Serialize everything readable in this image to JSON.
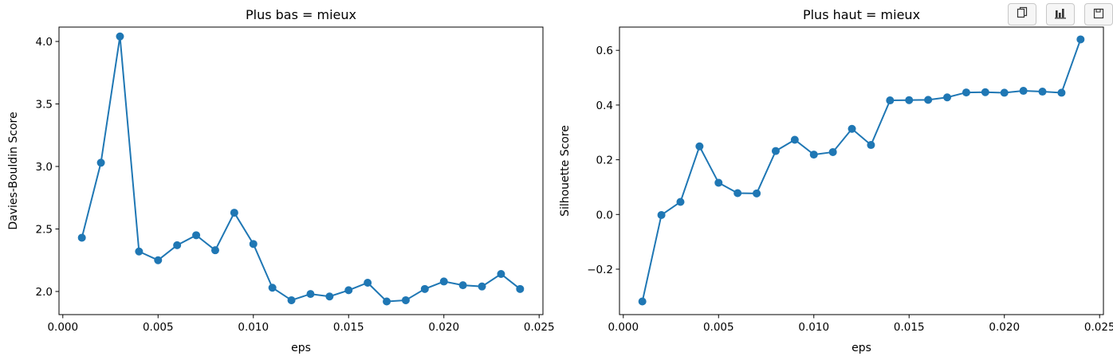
{
  "toolbar": {
    "buttons": [
      {
        "icon": "copy-icon"
      },
      {
        "icon": "bar-chart-icon"
      },
      {
        "icon": "save-icon"
      }
    ]
  },
  "chart_data": [
    {
      "type": "line",
      "title": "Plus bas = mieux",
      "xlabel": "eps",
      "ylabel": "Davies-Bouldin Score",
      "xlim": [
        -0.0002,
        0.0252
      ],
      "ylim": [
        1.815,
        4.115
      ],
      "xticks": [
        0.0,
        0.005,
        0.01,
        0.015,
        0.02,
        0.025
      ],
      "xtick_labels": [
        "0.000",
        "0.005",
        "0.010",
        "0.015",
        "0.020",
        "0.025"
      ],
      "yticks": [
        2.0,
        2.5,
        3.0,
        3.5,
        4.0
      ],
      "ytick_labels": [
        "2.0",
        "2.5",
        "3.0",
        "3.5",
        "4.0"
      ],
      "color": "#1f77b4",
      "marker": "circle",
      "x": [
        0.001,
        0.002,
        0.003,
        0.004,
        0.005,
        0.006,
        0.007,
        0.008,
        0.009,
        0.01,
        0.011,
        0.012,
        0.013,
        0.014,
        0.015,
        0.016,
        0.017,
        0.018,
        0.019,
        0.02,
        0.021,
        0.022,
        0.023,
        0.024
      ],
      "y": [
        2.43,
        3.03,
        4.04,
        2.32,
        2.25,
        2.37,
        2.45,
        2.33,
        2.63,
        2.38,
        2.03,
        1.93,
        1.98,
        1.96,
        2.01,
        2.07,
        1.92,
        1.93,
        2.02,
        2.08,
        2.05,
        2.04,
        2.14,
        2.02
      ],
      "grid": false
    },
    {
      "type": "line",
      "title": "Plus haut = mieux",
      "xlabel": "eps",
      "ylabel": "Silhouette Score",
      "xlim": [
        -0.0002,
        0.0252
      ],
      "ylim": [
        -0.366,
        0.685
      ],
      "xticks": [
        0.0,
        0.005,
        0.01,
        0.015,
        0.02,
        0.025
      ],
      "xtick_labels": [
        "0.000",
        "0.005",
        "0.010",
        "0.015",
        "0.020",
        "0.025"
      ],
      "yticks": [
        -0.2,
        0.0,
        0.2,
        0.4,
        0.6
      ],
      "ytick_labels": [
        "−0.2",
        "0.0",
        "0.2",
        "0.4",
        "0.6"
      ],
      "color": "#1f77b4",
      "marker": "circle",
      "x": [
        0.001,
        0.002,
        0.003,
        0.004,
        0.005,
        0.006,
        0.007,
        0.008,
        0.009,
        0.01,
        0.011,
        0.012,
        0.013,
        0.014,
        0.015,
        0.016,
        0.017,
        0.018,
        0.019,
        0.02,
        0.021,
        0.022,
        0.023,
        0.024
      ],
      "y": [
        -0.318,
        -0.002,
        0.046,
        0.249,
        0.116,
        0.078,
        0.077,
        0.232,
        0.273,
        0.219,
        0.228,
        0.313,
        0.254,
        0.417,
        0.418,
        0.419,
        0.428,
        0.446,
        0.447,
        0.445,
        0.452,
        0.449,
        0.445,
        0.64
      ],
      "grid": false
    }
  ]
}
